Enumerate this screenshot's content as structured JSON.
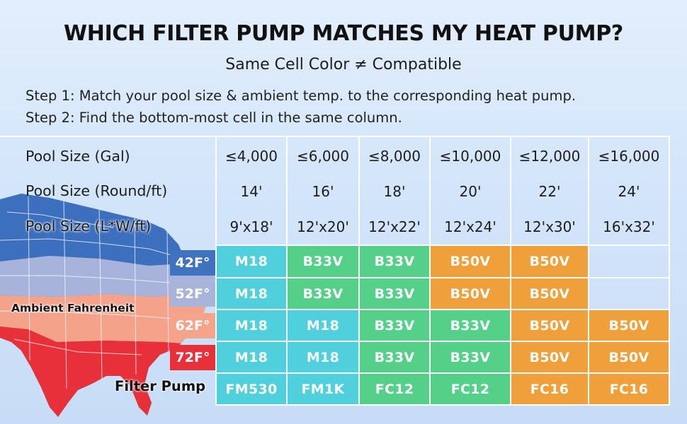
{
  "title": "WHICH FILTER PUMP MATCHES MY HEAT PUMP?",
  "subtitle": "Same Cell Color ≠ Compatible",
  "step1": "Step 1: Match your pool size & ambient temp. to the corresponding heat pump.",
  "step2": "Step 2: Find the bottom-most cell in the same column.",
  "map_label": "Ambient Fahrenheit",
  "filter_pump_label": "Filter Pump",
  "row_labels": {
    "gal": "Pool Size (Gal)",
    "round": "Pool Size (Round/ft)",
    "lw": "Pool Size (L*W/ft)"
  },
  "columns": [
    {
      "gal": "≤4,000",
      "round": "14'",
      "lw": "9'x18'"
    },
    {
      "gal": "≤6,000",
      "round": "16'",
      "lw": "12'x20'"
    },
    {
      "gal": "≤8,000",
      "round": "18'",
      "lw": "12'x22'"
    },
    {
      "gal": "≤10,000",
      "round": "20'",
      "lw": "12'x24'"
    },
    {
      "gal": "≤12,000",
      "round": "22'",
      "lw": "12'x30'"
    },
    {
      "gal": "≤16,000",
      "round": "24'",
      "lw": "16'x32'"
    }
  ],
  "temps": [
    {
      "label": "42F°",
      "color": "#3f73c0"
    },
    {
      "label": "52F°",
      "color": "#a9b4db"
    },
    {
      "label": "62F°",
      "color": "#f5a38b"
    },
    {
      "label": "72F°",
      "color": "#e8303b"
    }
  ],
  "heat_pump_rows": [
    [
      "M18",
      "B33V",
      "B33V",
      "B50V",
      "B50V",
      ""
    ],
    [
      "M18",
      "B33V",
      "B33V",
      "B50V",
      "B50V",
      ""
    ],
    [
      "M18",
      "M18",
      "B33V",
      "B33V",
      "B50V",
      "B50V"
    ],
    [
      "M18",
      "M18",
      "B33V",
      "B33V",
      "B50V",
      "B50V"
    ]
  ],
  "filter_pumps": [
    "FM530",
    "FM1K",
    "FC12",
    "FC12",
    "FC16",
    "FC16"
  ],
  "model_colors": {
    "M18": "#4fd0dc",
    "FM530": "#4fd0dc",
    "FM1K": "#4fd0dc",
    "B33V": "#55d089",
    "FC12": "#55d089",
    "B50V": "#f0a03a",
    "FC16": "#f0a03a"
  }
}
